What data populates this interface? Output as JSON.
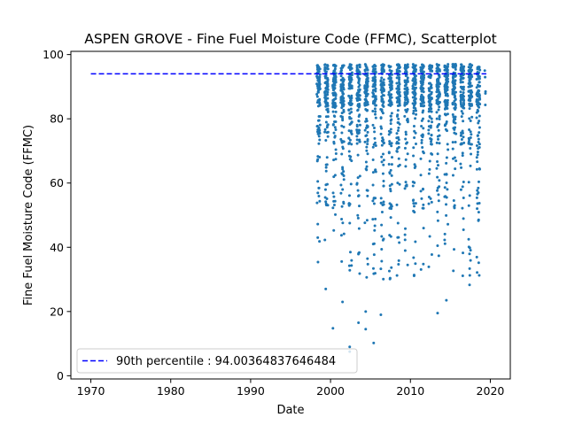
{
  "chart_data": {
    "type": "scatter",
    "title": "ASPEN GROVE - Fine Fuel Moisture Code (FFMC), Scatterplot",
    "xlabel": "Date",
    "ylabel": "Fine Fuel Moisture Code (FFMC)",
    "xlim": [
      1967.5,
      2022.5
    ],
    "ylim": [
      -1,
      101
    ],
    "xticks": [
      1970,
      1980,
      1990,
      2000,
      2010,
      2020
    ],
    "yticks": [
      0,
      20,
      40,
      60,
      80,
      100
    ],
    "grid": false,
    "legend_position": "lower-left",
    "colors": {
      "points": "#1f77b4",
      "percentile_line": "#0000ff"
    },
    "reference_line": {
      "label": "90th percentile : 94.00364837646484",
      "y": 94.00364837646484,
      "x_start": 1970,
      "x_end": 2019.5,
      "style": "dashed"
    },
    "series": [
      {
        "marker": "point",
        "season_years": [
          1998,
          1999,
          2000,
          2001,
          2002,
          2003,
          2004,
          2005,
          2006,
          2007,
          2008,
          2009,
          2010,
          2011,
          2012,
          2013,
          2014,
          2015,
          2016,
          2017,
          2018,
          2019
        ],
        "notable_points": [
          {
            "x": 1998.4,
            "y": 60.5
          },
          {
            "x": 1998.4,
            "y": 43.0
          },
          {
            "x": 1999.4,
            "y": 27.0
          },
          {
            "x": 2000.3,
            "y": 14.8
          },
          {
            "x": 2001.5,
            "y": 23.0
          },
          {
            "x": 2002.4,
            "y": 9.0
          },
          {
            "x": 2002.4,
            "y": 7.5
          },
          {
            "x": 2003.5,
            "y": 16.5
          },
          {
            "x": 2004.4,
            "y": 20.0
          },
          {
            "x": 2004.4,
            "y": 14.5
          },
          {
            "x": 2005.4,
            "y": 10.2
          },
          {
            "x": 2006.3,
            "y": 19.0
          },
          {
            "x": 2013.4,
            "y": 19.5
          },
          {
            "x": 2014.5,
            "y": 23.5
          },
          {
            "x": 2017.4,
            "y": 28.3
          },
          {
            "x": 2018.5,
            "y": 57.0
          },
          {
            "x": 2019.4,
            "y": 88.5
          }
        ]
      }
    ]
  }
}
